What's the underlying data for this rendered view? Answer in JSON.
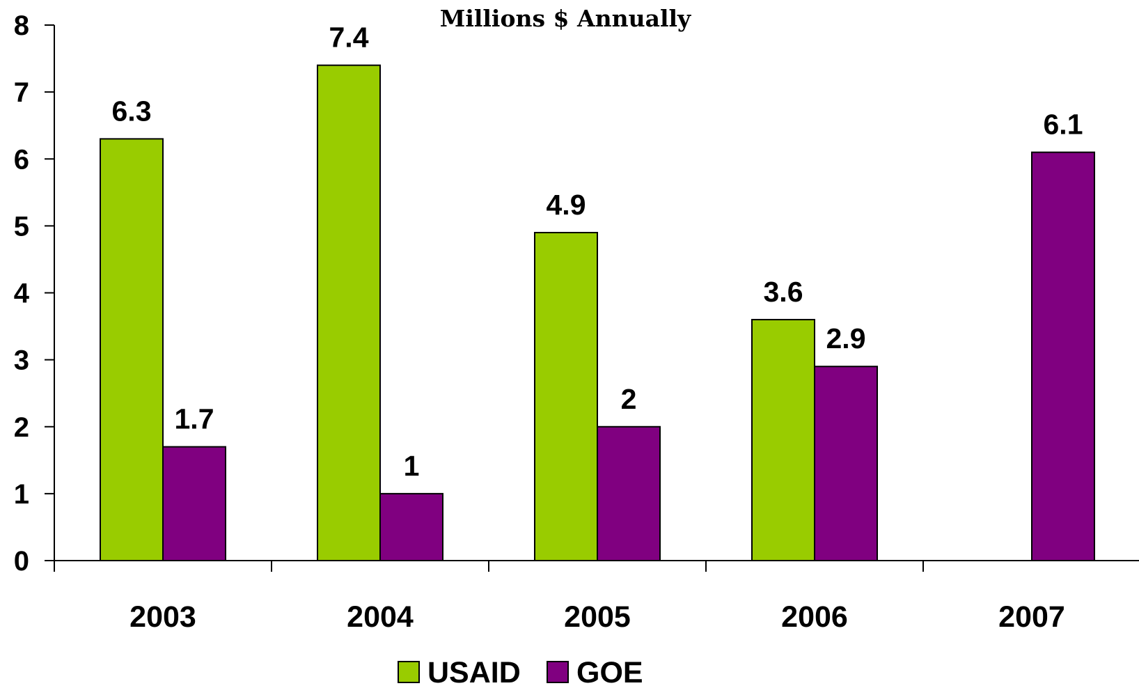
{
  "chart_data": {
    "type": "bar",
    "title": "Millions $ Annually",
    "categories": [
      "2003",
      "2004",
      "2005",
      "2006",
      "2007"
    ],
    "series": [
      {
        "name": "USAID",
        "values": [
          6.3,
          7.4,
          4.9,
          3.6,
          null
        ],
        "labels": [
          "6.3",
          "7.4",
          "4.9",
          "3.6",
          ""
        ]
      },
      {
        "name": "GOE",
        "values": [
          1.7,
          1.0,
          2.0,
          2.9,
          6.1
        ],
        "labels": [
          "1.7",
          "1",
          "2",
          "2.9",
          "6.1"
        ]
      }
    ],
    "ylim": [
      0,
      8
    ],
    "yticks": [
      "0",
      "1",
      "2",
      "3",
      "4",
      "5",
      "6",
      "7",
      "8"
    ],
    "grid": false,
    "legend": "bottom-center",
    "colors": {
      "USAID": "#99cc00",
      "GOE": "#800080"
    }
  }
}
